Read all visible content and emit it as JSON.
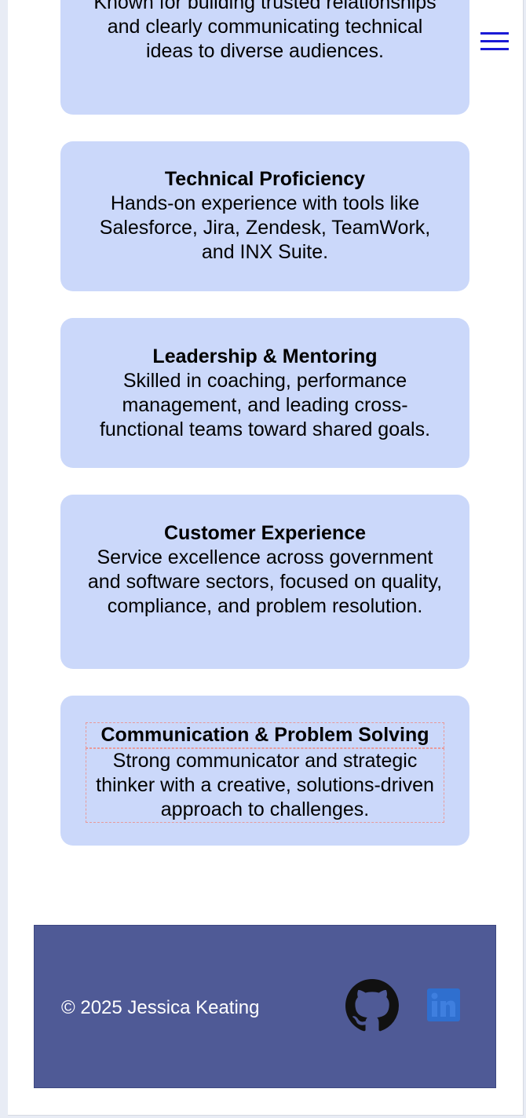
{
  "header": {
    "menu_icon": "hamburger-menu-icon",
    "menu_color": "#1a1ad6"
  },
  "cards": [
    {
      "title": "",
      "text": "Known for building trusted relationships and clearly communicating technical ideas to diverse audiences."
    },
    {
      "title": "Technical Proficiency",
      "text": "Hands-on experience with tools like Salesforce, Jira, Zendesk, TeamWork, and INX Suite."
    },
    {
      "title": "Leadership & Mentoring",
      "text": "Skilled in coaching, performance management, and leading cross-functional teams toward shared goals."
    },
    {
      "title": "Customer Experience",
      "text": "Service excellence across government and software sectors, focused on quality, compliance, and problem resolution."
    },
    {
      "title": "Communication & Problem Solving",
      "text": "Strong communicator and strategic thinker with a creative, solutions-driven approach to challenges."
    }
  ],
  "footer": {
    "copyright": "© 2025 Jessica Keating",
    "background": "#4f5a96",
    "social_icons": [
      "github-icon",
      "linkedin-icon"
    ]
  },
  "colors": {
    "card_background": "#cbd8fa",
    "linkedin_blue": "#2f6fcf"
  }
}
